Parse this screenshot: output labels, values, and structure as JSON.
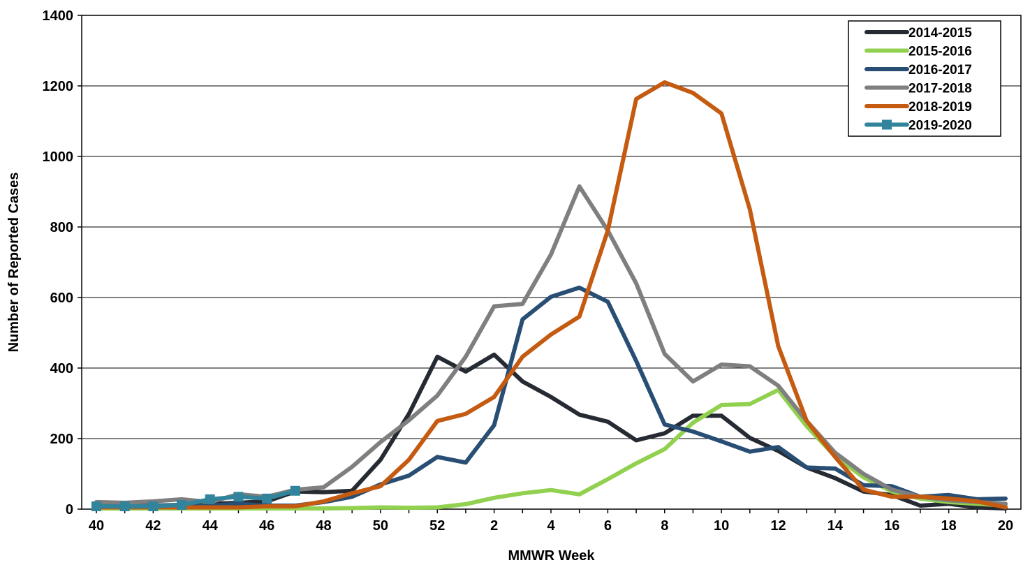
{
  "chart_data": {
    "type": "line",
    "xlabel": "MMWR Week",
    "ylabel": "Number of Reported Cases",
    "ylim": [
      0,
      1400
    ],
    "y_ticks": [
      0,
      200,
      400,
      600,
      800,
      1000,
      1200,
      1400
    ],
    "grid": "horizontal",
    "legend_position": "top-right",
    "categories": [
      "40",
      "41",
      "42",
      "43",
      "44",
      "45",
      "46",
      "47",
      "48",
      "49",
      "50",
      "51",
      "52",
      "1",
      "2",
      "3",
      "4",
      "5",
      "6",
      "7",
      "8",
      "9",
      "10",
      "11",
      "12",
      "13",
      "14",
      "15",
      "16",
      "17",
      "18",
      "19",
      "20"
    ],
    "x_tick_labels": [
      "40",
      "42",
      "44",
      "46",
      "48",
      "50",
      "52",
      "2",
      "4",
      "6",
      "8",
      "10",
      "12",
      "14",
      "16",
      "18",
      "20"
    ],
    "series": [
      {
        "name": "2014-2015",
        "color": "#252a33",
        "marker": "none",
        "values": [
          15,
          12,
          10,
          12,
          15,
          18,
          22,
          50,
          48,
          52,
          140,
          270,
          432,
          390,
          438,
          362,
          318,
          268,
          248,
          195,
          215,
          265,
          265,
          202,
          165,
          118,
          88,
          50,
          40,
          10,
          15,
          5,
          2
        ]
      },
      {
        "name": "2015-2016",
        "color": "#92d050",
        "marker": "none",
        "values": [
          2,
          2,
          2,
          2,
          2,
          2,
          2,
          2,
          2,
          3,
          5,
          4,
          5,
          14,
          32,
          45,
          54,
          42,
          85,
          130,
          170,
          245,
          295,
          298,
          338,
          235,
          150,
          90,
          50,
          30,
          20,
          15,
          10
        ]
      },
      {
        "name": "2016-2017",
        "color": "#284e74",
        "marker": "none",
        "values": [
          15,
          12,
          10,
          10,
          10,
          15,
          10,
          10,
          20,
          35,
          70,
          95,
          148,
          132,
          238,
          538,
          602,
          628,
          588,
          420,
          240,
          220,
          192,
          163,
          176,
          118,
          115,
          68,
          65,
          35,
          40,
          28,
          30
        ]
      },
      {
        "name": "2017-2018",
        "color": "#7f7f7f",
        "marker": "none",
        "values": [
          20,
          18,
          22,
          28,
          20,
          42,
          35,
          55,
          62,
          120,
          190,
          252,
          322,
          432,
          575,
          582,
          722,
          915,
          790,
          640,
          440,
          362,
          410,
          405,
          350,
          250,
          160,
          100,
          55,
          35,
          25,
          20,
          15
        ]
      },
      {
        "name": "2018-2019",
        "color": "#c55a11",
        "marker": "none",
        "values": [
          5,
          5,
          5,
          5,
          5,
          5,
          8,
          8,
          22,
          45,
          65,
          140,
          250,
          270,
          318,
          432,
          495,
          546,
          790,
          1163,
          1210,
          1180,
          1122,
          850,
          462,
          250,
          148,
          55,
          35,
          35,
          30,
          22,
          5
        ]
      },
      {
        "name": "2019-2020",
        "color": "#31849b",
        "marker": "square",
        "values": [
          8,
          8,
          8,
          12,
          28,
          35,
          30,
          52,
          null,
          null,
          null,
          null,
          null,
          null,
          null,
          null,
          null,
          null,
          null,
          null,
          null,
          null,
          null,
          null,
          null,
          null,
          null,
          null,
          null,
          null,
          null,
          null,
          null
        ]
      }
    ]
  }
}
